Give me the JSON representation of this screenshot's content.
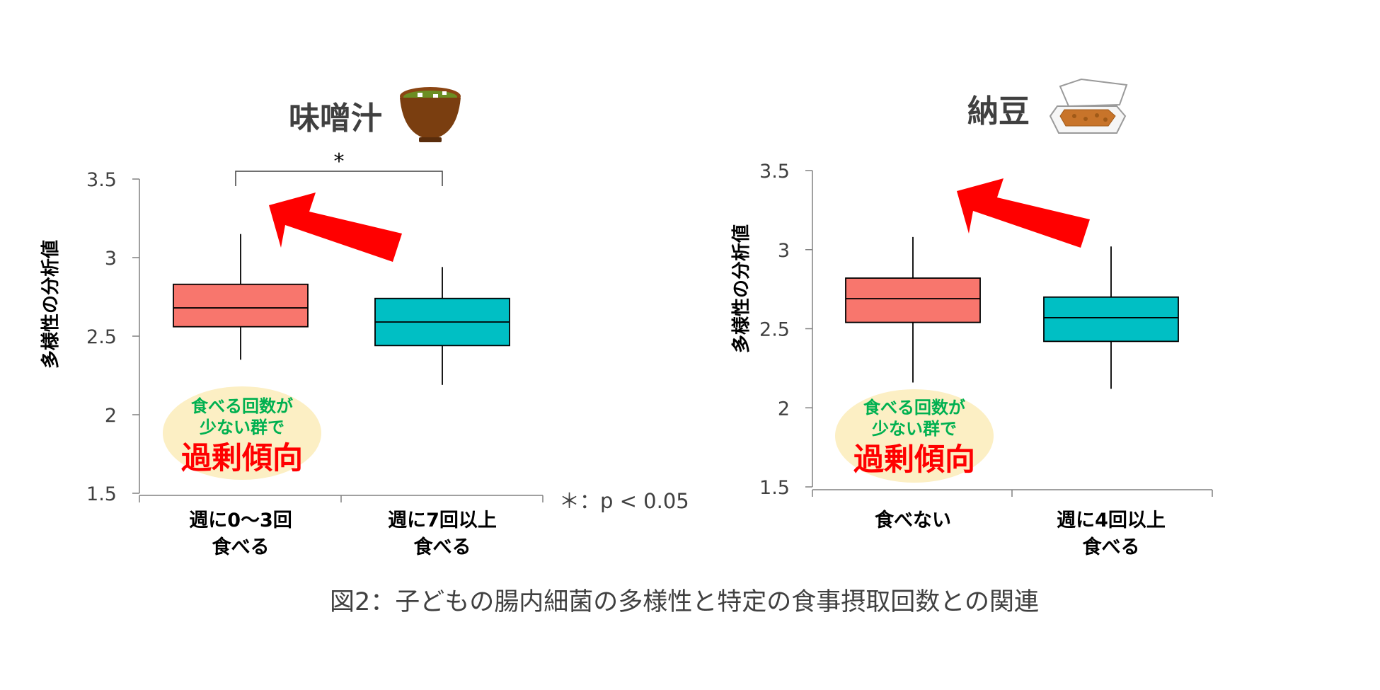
{
  "caption": "図2：子どもの腸内細菌の多様性と特定の食事摂取回数との関連",
  "p_note": "＊：p < 0.05",
  "colors": {
    "low_group": "#F8766D",
    "high_group": "#00BFC4",
    "arrow": "#FF0000",
    "bubble_fill": "#FCEFC4",
    "bubble_green": "#00B050",
    "bubble_red": "#FF0000"
  },
  "chart_data": [
    {
      "type": "box",
      "title": "味噌汁",
      "icon": "miso-soup-bowl-icon",
      "ylabel": "多様性の分析値",
      "ylim": [
        1.5,
        3.5
      ],
      "yticks": [
        "1.5",
        "2",
        "2.5",
        "3",
        "3.5"
      ],
      "categories": [
        {
          "line1": "週に0〜3回",
          "line2": "食べる"
        },
        {
          "line1": "週に7回以上",
          "line2": "食べる"
        }
      ],
      "boxes": [
        {
          "whisker_low": 2.35,
          "q1": 2.56,
          "median": 2.68,
          "q3": 2.83,
          "whisker_high": 3.15
        },
        {
          "whisker_low": 2.19,
          "q1": 2.44,
          "median": 2.59,
          "q3": 2.74,
          "whisker_high": 2.94
        }
      ],
      "significance": "*",
      "bubble": {
        "line1": "食べる回数が",
        "line2": "少ない群で",
        "emphasis": "過剰傾向"
      }
    },
    {
      "type": "box",
      "title": "納豆",
      "icon": "natto-pack-icon",
      "ylabel": "多様性の分析値",
      "ylim": [
        1.5,
        3.5
      ],
      "yticks": [
        "1.5",
        "2",
        "2.5",
        "3",
        "3.5"
      ],
      "categories": [
        {
          "line1": "食べない",
          "line2": ""
        },
        {
          "line1": "週に4回以上",
          "line2": "食べる"
        }
      ],
      "boxes": [
        {
          "whisker_low": 2.16,
          "q1": 2.54,
          "median": 2.69,
          "q3": 2.82,
          "whisker_high": 3.08
        },
        {
          "whisker_low": 2.12,
          "q1": 2.42,
          "median": 2.57,
          "q3": 2.7,
          "whisker_high": 3.02
        }
      ],
      "significance": "",
      "bubble": {
        "line1": "食べる回数が",
        "line2": "少ない群で",
        "emphasis": "過剰傾向"
      }
    }
  ]
}
